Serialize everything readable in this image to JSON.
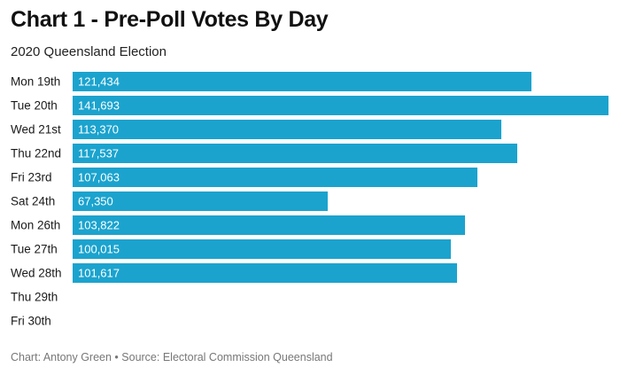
{
  "header": {
    "title": "Chart 1 - Pre-Poll Votes By Day",
    "subtitle": "2020 Queensland Election"
  },
  "footer": {
    "source": "Chart: Antony Green • Source: Electoral Commission Queensland"
  },
  "colors": {
    "bar": "#1ba3ce",
    "bar_label": "#ffffff",
    "category_label": "#1a1a1a"
  },
  "chart_data": {
    "type": "bar",
    "orientation": "horizontal",
    "title": "Chart 1 - Pre-Poll Votes By Day",
    "subtitle": "2020 Queensland Election",
    "categories": [
      "Mon 19th",
      "Tue 20th",
      "Wed 21st",
      "Thu 22nd",
      "Fri 23rd",
      "Sat 24th",
      "Mon 26th",
      "Tue 27th",
      "Wed 28th",
      "Thu 29th",
      "Fri 30th"
    ],
    "values": [
      121434,
      141693,
      113370,
      117537,
      107063,
      67350,
      103822,
      100015,
      101617,
      null,
      null
    ],
    "value_labels": [
      "121,434",
      "141,693",
      "113,370",
      "117,537",
      "107,063",
      "67,350",
      "103,822",
      "100,015",
      "101,617",
      "",
      ""
    ],
    "xlim": [
      0,
      141693
    ],
    "grid": false,
    "legend": "none"
  }
}
